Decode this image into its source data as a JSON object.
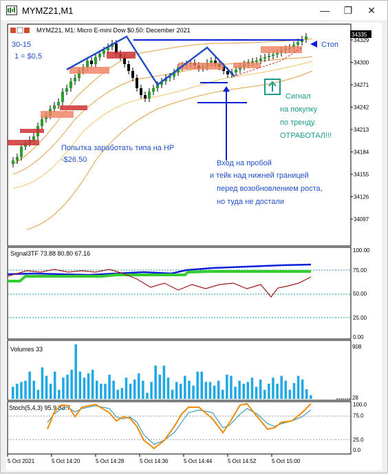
{
  "window": {
    "title": "MYMZ21,M1",
    "minimize_glyph": "—",
    "restore_glyph": "❐",
    "close_glyph": "✕"
  },
  "main_panel": {
    "header": "MYMZ21, M1:  Micro E-mini Dow $0.50: December 2021",
    "price_labels": [
      "34329",
      "34300",
      "34271",
      "34242",
      "34213",
      "34184",
      "34155",
      "34126",
      "34097"
    ],
    "current_price": "34335",
    "settings_line1": "30-15",
    "settings_line2": "1 = $0,5",
    "annotations": {
      "stop": "Стоп",
      "signal": [
        "Сигнал",
        "на покупку",
        "по тренду.",
        "ОТРАБОТАЛ!!!"
      ],
      "attempt": "Попытка заработать типа на НР",
      "loss": "-$26.50",
      "entry": [
        "Вход на пробой",
        "и тейк над нижней границей",
        "перед возобновлением роста,",
        "но туда не достали"
      ]
    }
  },
  "signal_panel": {
    "header": "Signal3TF 73.88 80.80 67.16",
    "scale": [
      "100.00",
      "75.00",
      "50.00",
      "25.00",
      "0.00"
    ],
    "colors": {
      "blue": "#0a1fd6",
      "green": "#33cc33",
      "red": "#a01818"
    }
  },
  "volume_panel": {
    "header": "Volumes 33",
    "scale_top": "908",
    "scale_bottom": "28",
    "color": "#1ea8e6"
  },
  "stoch_panel": {
    "header": "Stoch(5,4,3) 95.9 83.7",
    "scale": [
      "100.0",
      "75.0",
      "25.0",
      "0.0"
    ],
    "colors": {
      "main": "#f08a0a",
      "signal": "#1c8fb0"
    }
  },
  "time_axis": [
    "5 Oct 2021",
    "5 Oct 14:20",
    "5 Oct 14:28",
    "5 Oct 14:36",
    "5 Oct 14:44",
    "5 Oct 14:52",
    "5 Oct 15:00"
  ]
}
